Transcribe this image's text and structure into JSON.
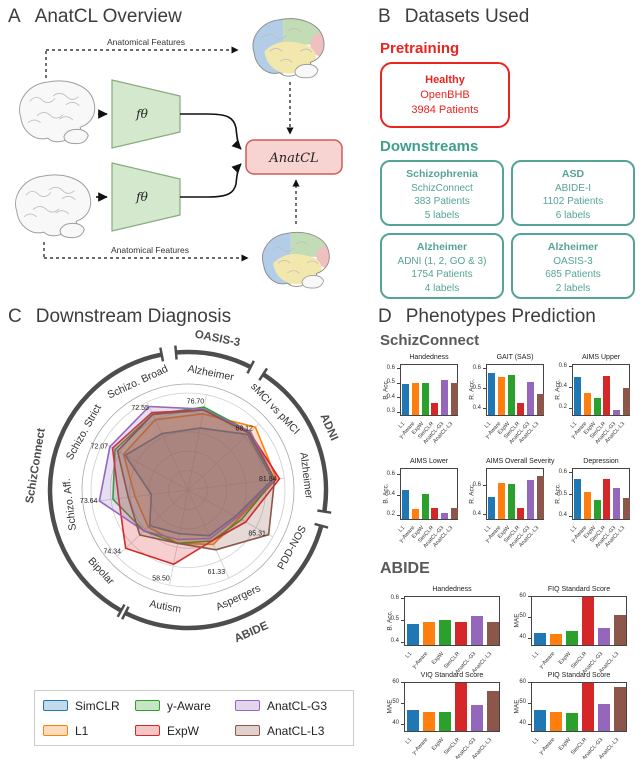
{
  "panel_a": {
    "letter": "A",
    "title": "AnatCL Overview",
    "top_label": "Anatomical Features",
    "bottom_label": "Anatomical Features",
    "encoder_top_label": "fθ",
    "encoder_bottom_label": "fθ",
    "anatcl_box_label": "AnatCL"
  },
  "panel_b": {
    "letter": "B",
    "title": "Datasets Used",
    "pretraining_heading": "Pretraining",
    "pretraining_color": "#e8251f",
    "pretraining_box": {
      "title": "Healthy",
      "dataset": "OpenBHB",
      "patients": "3984 Patients"
    },
    "downstreams_heading": "Downstreams",
    "downstream_color": "#3f9e8c",
    "downstream_boxes": [
      {
        "title": "Schizophrenia",
        "dataset": "SchizConnect",
        "patients": "383 Patients",
        "labels": "5 labels"
      },
      {
        "title": "ASD",
        "dataset": "ABIDE-I",
        "patients": "1102 Patients",
        "labels": "6 labels"
      },
      {
        "title": "Alzheimer",
        "dataset": "ADNI (1, 2, GO & 3)",
        "patients": "1754 Patients",
        "labels": "4 labels"
      },
      {
        "title": "Alzheimer",
        "dataset": "OASIS-3",
        "patients": "685 Patients",
        "labels": "2 labels"
      }
    ]
  },
  "panel_c": {
    "letter": "C",
    "title": "Downstream Diagnosis"
  },
  "panel_d": {
    "letter": "D",
    "title": "Phenotypes Prediction",
    "section1": "SchizConnect",
    "section2": "ABIDE"
  },
  "chart_data": [
    {
      "type": "radar",
      "title": "Downstream Diagnosis",
      "categories": [
        "Alzheimer",
        "sMCI vs pMCI",
        "Alzheimer",
        "PDD-NOS",
        "Aspergers",
        "Autism",
        "Bipolar",
        "Schizo. Aff.",
        "Schizo. Strict",
        "Schizo. Broad"
      ],
      "axis_max_labels": [
        "76.70",
        "68.12",
        "81.84",
        "85.31",
        "61.33",
        "58.50",
        "74.34",
        "73.64",
        "72.07",
        "72.55"
      ],
      "group_arcs": [
        {
          "label": "OASIS-3",
          "start_deg": 63,
          "end_deg": 95
        },
        {
          "label": "ADNI",
          "start_deg": -9,
          "end_deg": 57
        },
        {
          "label": "ABIDE",
          "start_deg": -117,
          "end_deg": -15
        },
        {
          "label": "SchizConnect",
          "start_deg": 101,
          "end_deg": 241
        }
      ],
      "grid_rings": [
        0.2,
        0.4,
        0.6,
        0.8,
        1.0
      ],
      "legend_position": "bottom",
      "series": [
        {
          "name": "SimCLR",
          "color": "#1f77b4",
          "values_norm": [
            0.65,
            0.84,
            0.88,
            0.56,
            0.52,
            0.46,
            0.54,
            0.38,
            0.74,
            0.64
          ]
        },
        {
          "name": "L1",
          "color": "#ff7f0e",
          "values_norm": [
            0.8,
            0.95,
            0.92,
            0.6,
            0.62,
            0.56,
            0.56,
            0.55,
            0.76,
            0.8
          ]
        },
        {
          "name": "y-Aware",
          "color": "#2ca02c",
          "values_norm": [
            0.87,
            0.88,
            0.9,
            0.63,
            0.58,
            0.56,
            0.62,
            0.78,
            0.86,
            0.86
          ]
        },
        {
          "name": "ExpW",
          "color": "#d62728",
          "values_norm": [
            0.84,
            0.87,
            0.95,
            0.68,
            0.58,
            0.78,
            0.88,
            0.72,
            0.89,
            0.88
          ]
        },
        {
          "name": "AnatCL-G3",
          "color": "#9467bd",
          "values_norm": [
            0.85,
            0.88,
            0.9,
            0.58,
            0.55,
            0.52,
            0.62,
            0.92,
            0.92,
            0.95
          ]
        },
        {
          "name": "AnatCL-L3",
          "color": "#8c564b",
          "values_norm": [
            0.84,
            0.86,
            0.9,
            0.95,
            0.68,
            0.56,
            0.68,
            0.62,
            0.83,
            0.86
          ]
        }
      ]
    },
    {
      "type": "bar",
      "section": "SchizConnect",
      "title": "Handedness",
      "ylabel": "B. Acc.",
      "yticks": [
        "0.3",
        "0.4",
        "0.5",
        "0.6"
      ],
      "ylim": [
        0.27,
        0.63
      ],
      "values": [
        0.49,
        0.5,
        0.5,
        0.36,
        0.52,
        0.5
      ]
    },
    {
      "type": "bar",
      "section": "SchizConnect",
      "title": "GAIT (SAS)",
      "ylabel": "R. Acc.",
      "yticks": [
        "0.4",
        "0.5",
        "0.6"
      ],
      "ylim": [
        0.36,
        0.62
      ],
      "values": [
        0.58,
        0.56,
        0.57,
        0.42,
        0.53,
        0.47
      ]
    },
    {
      "type": "bar",
      "section": "SchizConnect",
      "title": "AIMS Upper",
      "ylabel": "R. Acc.",
      "yticks": [
        "0.2",
        "0.4",
        "0.6"
      ],
      "ylim": [
        0.12,
        0.62
      ],
      "values": [
        0.5,
        0.34,
        0.29,
        0.51,
        0.17,
        0.39
      ]
    },
    {
      "type": "bar",
      "section": "SchizConnect",
      "title": "AIMS Lower",
      "ylabel": "B. Acc.",
      "yticks": [
        "0.2",
        "0.4",
        "0.6"
      ],
      "ylim": [
        0.15,
        0.66
      ],
      "values": [
        0.45,
        0.25,
        0.41,
        0.26,
        0.21,
        0.26
      ]
    },
    {
      "type": "bar",
      "section": "SchizConnect",
      "title": "AIMS Overall Severity",
      "ylabel": "R. Acc.",
      "yticks": [
        "0.4",
        "0.6"
      ],
      "ylim": [
        0.36,
        0.72
      ],
      "values": [
        0.52,
        0.62,
        0.61,
        0.44,
        0.64,
        0.67
      ]
    },
    {
      "type": "bar",
      "section": "SchizConnect",
      "title": "Depression",
      "ylabel": "R. Acc.",
      "yticks": [
        "0.4",
        "0.5",
        "0.6"
      ],
      "ylim": [
        0.38,
        0.62
      ],
      "values": [
        0.57,
        0.51,
        0.47,
        0.57,
        0.53,
        0.48
      ]
    },
    {
      "type": "bar",
      "section": "ABIDE",
      "title": "Handedness",
      "ylabel": "B. Acc.",
      "yticks": [
        "0.4",
        "0.5",
        "0.6"
      ],
      "ylim": [
        0.38,
        0.61
      ],
      "values": [
        0.48,
        0.49,
        0.5,
        0.49,
        0.52,
        0.49
      ]
    },
    {
      "type": "bar",
      "section": "ABIDE",
      "title": "FIQ Standard Score",
      "ylabel": "MAE",
      "yticks": [
        "40",
        "50",
        "60"
      ],
      "ylim": [
        36,
        60
      ],
      "values": [
        42,
        41.5,
        43,
        60,
        44.5,
        51
      ]
    },
    {
      "type": "bar",
      "section": "ABIDE",
      "title": "VIQ Standard Score",
      "ylabel": "MAE",
      "yticks": [
        "40",
        "50",
        "60"
      ],
      "ylim": [
        36,
        60
      ],
      "values": [
        46.5,
        45.5,
        45.5,
        60,
        49,
        56
      ]
    },
    {
      "type": "bar",
      "section": "ABIDE",
      "title": "PIQ Standard Score",
      "ylabel": "MAE",
      "yticks": [
        "40",
        "50",
        "60"
      ],
      "ylim": [
        36,
        60
      ],
      "values": [
        46.5,
        45.5,
        45,
        60,
        49.5,
        58
      ]
    }
  ],
  "bar_chart_shared": {
    "x_categories": [
      "L1",
      "y-Aware",
      "ExpW",
      "SimCLR",
      "AnatCL-G3",
      "AnatCL-L3"
    ],
    "bar_colors": [
      "#1f77b4",
      "#ff7f0e",
      "#2ca02c",
      "#d62728",
      "#9467bd",
      "#8c564b"
    ]
  }
}
